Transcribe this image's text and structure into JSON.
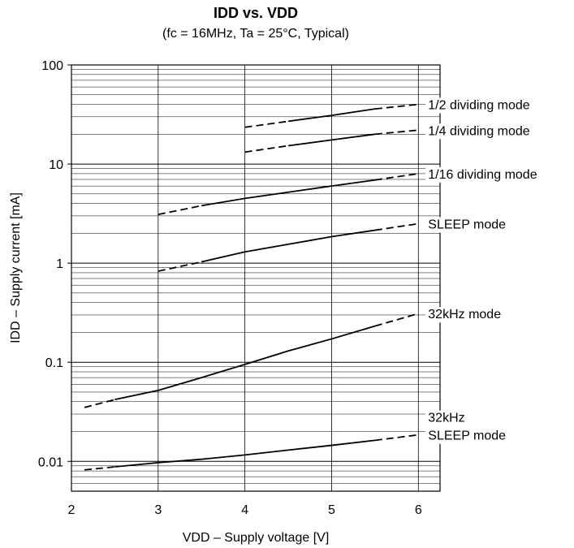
{
  "chart_data": {
    "type": "line",
    "title": "IDD vs. VDD",
    "subtitle": "(fc = 16MHz, Ta = 25°C, Typical)",
    "xlabel": "VDD – Supply voltage [V]",
    "ylabel": "IDD – Supply current [mA]",
    "xlim": [
      2,
      6.25
    ],
    "ylim": [
      0.005,
      100
    ],
    "yscale": "log",
    "grid": true,
    "x_ticks": [
      2,
      3,
      4,
      5,
      6
    ],
    "x_tick_labels": [
      "2",
      "3",
      "4",
      "5",
      "6"
    ],
    "y_ticks": [
      0.01,
      0.1,
      1,
      10,
      100
    ],
    "y_tick_labels": [
      "0.01",
      "0.1",
      "1",
      "10",
      "100"
    ],
    "series": [
      {
        "name": "1/2 dividing mode",
        "label_lines": [
          "1/2 dividing mode"
        ],
        "solid_range": [
          4.5,
          5.5
        ],
        "points": [
          [
            4.0,
            23.5
          ],
          [
            4.5,
            27
          ],
          [
            5.0,
            31
          ],
          [
            5.5,
            36
          ],
          [
            6.0,
            40
          ]
        ]
      },
      {
        "name": "1/4 dividing mode",
        "label_lines": [
          "1/4 dividing mode"
        ],
        "solid_range": [
          4.5,
          5.5
        ],
        "points": [
          [
            4.0,
            13.2
          ],
          [
            4.5,
            15.3
          ],
          [
            5.0,
            17.5
          ],
          [
            5.5,
            20
          ],
          [
            6.0,
            22
          ]
        ]
      },
      {
        "name": "1/16 dividing mode",
        "label_lines": [
          "1/16 dividing mode"
        ],
        "solid_range": [
          3.5,
          5.5
        ],
        "points": [
          [
            3.0,
            3.1
          ],
          [
            3.5,
            3.8
          ],
          [
            4.0,
            4.5
          ],
          [
            4.5,
            5.2
          ],
          [
            5.0,
            6.0
          ],
          [
            5.5,
            6.9
          ],
          [
            6.0,
            8.0
          ]
        ]
      },
      {
        "name": "SLEEP mode",
        "label_lines": [
          "SLEEP mode"
        ],
        "solid_range": [
          3.5,
          5.5
        ],
        "points": [
          [
            3.0,
            0.83
          ],
          [
            3.5,
            1.03
          ],
          [
            4.0,
            1.3
          ],
          [
            4.5,
            1.55
          ],
          [
            5.0,
            1.85
          ],
          [
            5.5,
            2.15
          ],
          [
            6.0,
            2.5
          ]
        ]
      },
      {
        "name": "32kHz mode",
        "label_lines": [
          "32kHz mode"
        ],
        "solid_range": [
          2.5,
          5.5
        ],
        "points": [
          [
            2.15,
            0.035
          ],
          [
            2.5,
            0.042
          ],
          [
            3.0,
            0.052
          ],
          [
            3.5,
            0.07
          ],
          [
            4.0,
            0.095
          ],
          [
            4.5,
            0.13
          ],
          [
            5.0,
            0.172
          ],
          [
            5.5,
            0.232
          ],
          [
            6.0,
            0.31
          ]
        ]
      },
      {
        "name": "32kHz SLEEP mode",
        "label_lines": [
          "32kHz",
          "SLEEP mode"
        ],
        "solid_range": [
          2.5,
          5.5
        ],
        "points": [
          [
            2.15,
            0.0082
          ],
          [
            2.5,
            0.0088
          ],
          [
            3.0,
            0.0097
          ],
          [
            3.5,
            0.0105
          ],
          [
            4.0,
            0.0116
          ],
          [
            4.5,
            0.013
          ],
          [
            5.0,
            0.0145
          ],
          [
            5.5,
            0.0163
          ],
          [
            6.0,
            0.0185
          ]
        ]
      }
    ]
  }
}
